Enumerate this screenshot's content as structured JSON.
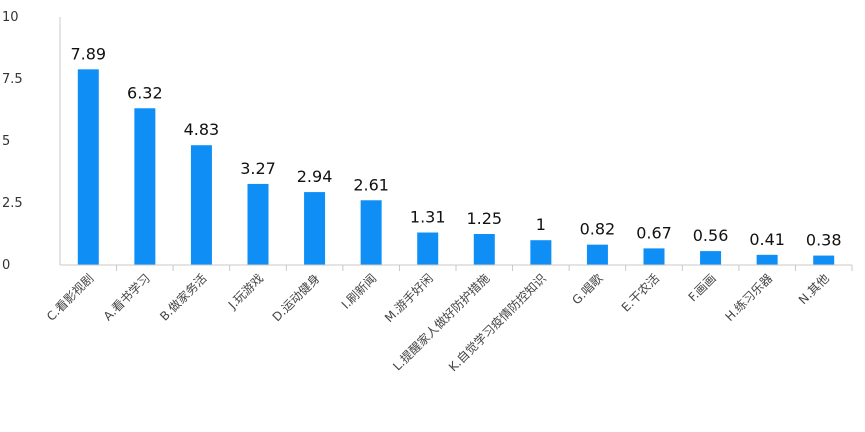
{
  "chart_data": {
    "type": "bar",
    "title": "",
    "xlabel": "",
    "ylabel": "",
    "ylim": [
      0,
      10
    ],
    "yticks": [
      "0",
      "2.5",
      "5",
      "7.5",
      "10"
    ],
    "ytick_values": [
      0,
      2.5,
      5,
      7.5,
      10
    ],
    "grid": false,
    "bar_color": "#0f8ff5",
    "categories": [
      "C.看影视剧",
      "A.看书学习",
      "B.做家务活",
      "J.玩游戏",
      "D.运动健身",
      "I.刷新闻",
      "M.游手好闲",
      "L.提醒家人做好防护措施",
      "K.自觉学习疫情防控知识",
      "G.唱歌",
      "E.干农活",
      "F.画画",
      "H.练习乐器",
      "N.其他"
    ],
    "values": [
      7.89,
      6.32,
      4.83,
      3.27,
      2.94,
      2.61,
      1.31,
      1.25,
      1,
      0.82,
      0.67,
      0.56,
      0.41,
      0.38
    ],
    "value_labels": [
      "7.89",
      "6.32",
      "4.83",
      "3.27",
      "2.94",
      "2.61",
      "1.31",
      "1.25",
      "1",
      "0.82",
      "0.67",
      "0.56",
      "0.41",
      "0.38"
    ]
  }
}
